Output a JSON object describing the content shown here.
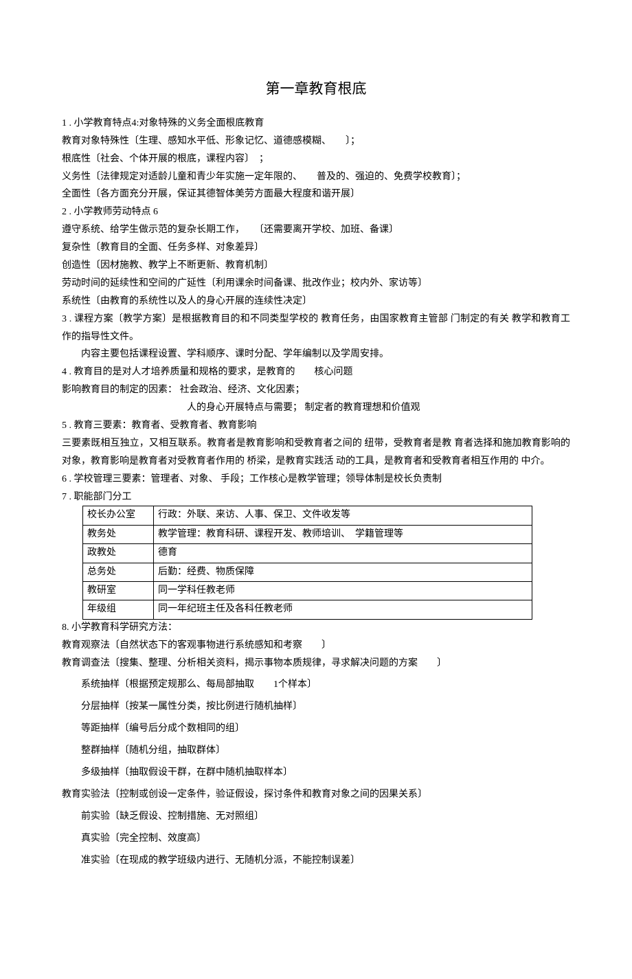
{
  "title": "第一章教育根底",
  "p1": "1 . 小学教育特点4:对象特殊的义务全面根底教育",
  "p2": "教育对象特殊性〔生理、感知水平低、形象记忆、道德感模糊、　　〕；",
  "p3": "根底性〔社会、个体开展的根底，课程内容〕　；",
  "p4": "义务性〔法律规定对适龄儿童和青少年实施一定年限的、　　普及的、强迫的、免费学校教育〕；",
  "p5": "全面性〔各方面充分开展，保证其德智体美劳方面最大程度和谐开展〕",
  "p6": "2 . 小学教师劳动特点  6",
  "p7": "遵守系统、给学生做示范的复杂长期工作，　　〔还需要离开学校、加班、备课〕",
  "p8": "复杂性〔教育目的全面、任务多样、对象差异〕",
  "p9": "创造性〔因材施教、教学上不断更新、教育机制〕",
  "p10": "劳动时间的延续性和空间的广延性〔利用课余时间备课、批改作业；校内外、家访等〕",
  "p11": "系统性〔由教育的系统性以及人的身心开展的连续性决定〕",
  "p12": "3 . 课程方案〔教学方案〕是根据教育目的和不同类型学校的  教育任务，由国家教育主管部  门制定的有关  教学和教育工作的指导性文件。",
  "p13": "内容主要包括课程设置、学科顺序、课时分配、学年编制以及学周安排。",
  "p14": "4 . 教育目的是对人才培养质量和规格的要求，是教育的　　核心问题",
  "p15": "影响教育目的制定的因素：  社会政治、经济、文化因素；",
  "p16": "人的身心开展特点与需要；  制定者的教育理想和价值观",
  "p17": "5 . 教育三要素：教育者、受教育者、教育影响",
  "p18": "三要素既相互独立，又相互联系。教育者是教育影响和受教育者之间的  纽带，受教育者是教  育者选择和施加教育影响的  对象，教育影响是教育者对受教育者作用的  桥梁，是教育实践活  动的工具，是教育者和受教育者相互作用的  中介。",
  "p19": "6 . 学校管理三要素：管理者、对象、  手段；工作核心是教学管理；领导体制是校长负责制",
  "p20": "7 . 职能部门分工",
  "table": {
    "rows": [
      [
        "校长办公室",
        "行政：外联、来访、人事、保卫、文件收发等"
      ],
      [
        "教务处",
        "教学管理：教育科研、课程开发、教师培训、　学籍管理等"
      ],
      [
        "政教处",
        "德育"
      ],
      [
        "总务处",
        "后勤：经费、物质保障"
      ],
      [
        "教研室",
        "同一学科任教老师"
      ],
      [
        "年级组",
        "同一年纪班主任及各科任教老师"
      ]
    ]
  },
  "p21": "8. 小学教育科学研究方法：",
  "p22": "教育观察法〔自然状态下的客观事物进行系统感知和考察　　〕",
  "p23": "教育调查法〔搜集、整理、分析相关资料，揭示事物本质规律，寻求解决问题的方案　　〕",
  "p24": "系统抽样〔根据预定规那么、每局部抽取　　1个样本〕",
  "p25": "分层抽样〔按某一属性分类，按比例进行随机抽样〕",
  "p26": "等距抽样〔编号后分成个数相同的组〕",
  "p27": "整群抽样〔随机分组，抽取群体〕",
  "p28": "多级抽样〔抽取假设干群，在群中随机抽取样本〕",
  "p29": "教育实验法〔控制或创设一定条件，验证假设，探讨条件和教育对象之间的因果关系〕",
  "p30": "前实验〔缺乏假设、控制措施、无对照组〕",
  "p31": "真实验〔完全控制、效度高〕",
  "p32": "准实验〔在现成的教学班级内进行、无随机分派，不能控制误差〕"
}
